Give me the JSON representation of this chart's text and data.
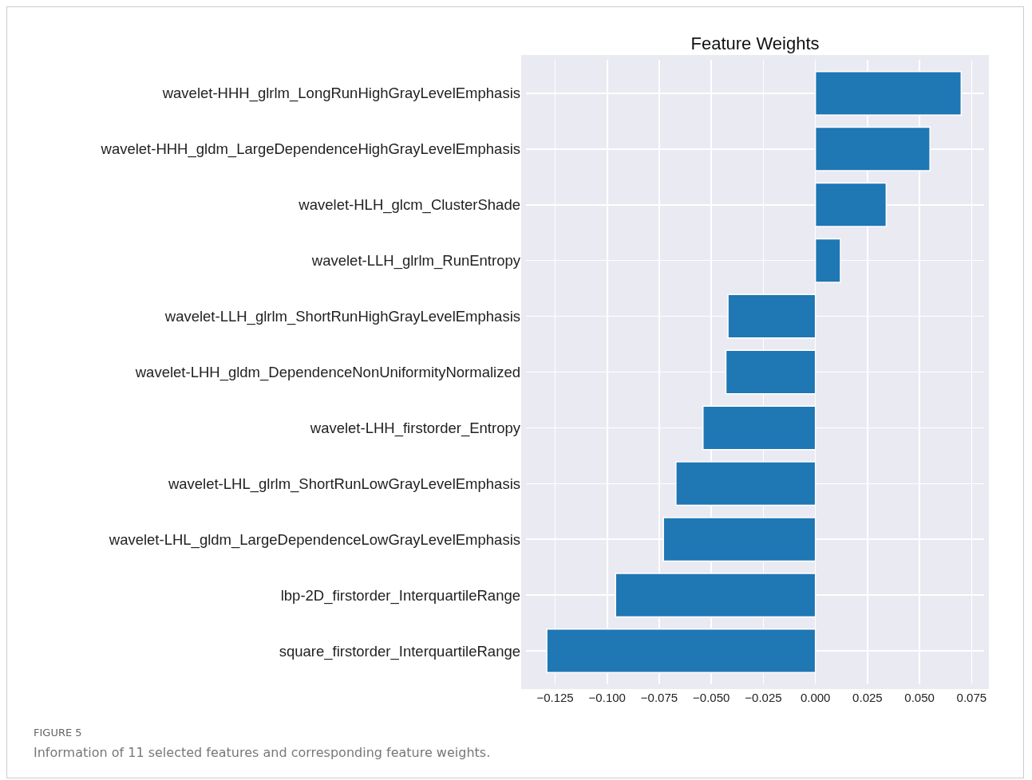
{
  "chart_data": {
    "type": "bar",
    "orientation": "horizontal",
    "title": "Feature Weights",
    "categories": [
      "wavelet-HHH_glrlm_LongRunHighGrayLevelEmphasis",
      "wavelet-HHH_gldm_LargeDependenceHighGrayLevelEmphasis",
      "wavelet-HLH_glcm_ClusterShade",
      "wavelet-LLH_glrlm_RunEntropy",
      "wavelet-LLH_glrlm_ShortRunHighGrayLevelEmphasis",
      "wavelet-LHH_gldm_DependenceNonUniformityNormalized",
      "wavelet-LHH_firstorder_Entropy",
      "wavelet-LHL_glrlm_ShortRunLowGrayLevelEmphasis",
      "wavelet-LHL_gldm_LargeDependenceLowGrayLevelEmphasis",
      "lbp-2D_firstorder_InterquartileRange",
      "square_firstorder_InterquartileRange"
    ],
    "values": [
      0.07,
      0.055,
      0.034,
      0.012,
      -0.042,
      -0.043,
      -0.054,
      -0.067,
      -0.073,
      -0.096,
      -0.129
    ],
    "color": "#1f77b4",
    "xlim": [
      -0.139,
      0.081
    ],
    "xticks": [
      {
        "value": -0.125,
        "label": "−0.125"
      },
      {
        "value": -0.1,
        "label": "−0.100"
      },
      {
        "value": -0.075,
        "label": "−0.075"
      },
      {
        "value": -0.05,
        "label": "−0.050"
      },
      {
        "value": -0.025,
        "label": "−0.025"
      },
      {
        "value": 0,
        "label": "0.000"
      },
      {
        "value": 0.025,
        "label": "0.025"
      },
      {
        "value": 0.05,
        "label": "0.050"
      },
      {
        "value": 0.075,
        "label": "0.075"
      }
    ],
    "grid": true,
    "annotations": [
      "FIGURE 5",
      "Information of 11 selected features and corresponding feature weights."
    ]
  }
}
